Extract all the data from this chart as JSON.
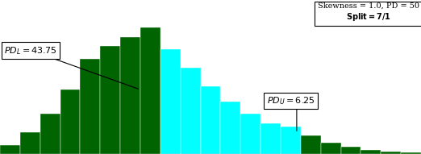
{
  "bar_values": [
    1.5,
    3.5,
    6.5,
    10.5,
    15.5,
    17.5,
    19.0,
    20.5,
    17.0,
    14.0,
    11.0,
    8.5,
    6.5,
    5.0,
    4.5,
    3.0,
    1.8,
    1.2,
    0.7,
    0.4,
    0.2
  ],
  "bar_colors": [
    "#006400",
    "#006400",
    "#006400",
    "#006400",
    "#006400",
    "#006400",
    "#006400",
    "#006400",
    "#00FFFF",
    "#00FFFF",
    "#00FFFF",
    "#00FFFF",
    "#00FFFF",
    "#00FFFF",
    "#00FFFF",
    "#006400",
    "#006400",
    "#006400",
    "#006400",
    "#006400",
    "#006400"
  ],
  "dark_green": "#006400",
  "cyan": "#00FFFF",
  "background": "#FFFFFF",
  "info_line1": "Skewness = 1.0, PD = 50",
  "info_line2": "Split = 7/1"
}
